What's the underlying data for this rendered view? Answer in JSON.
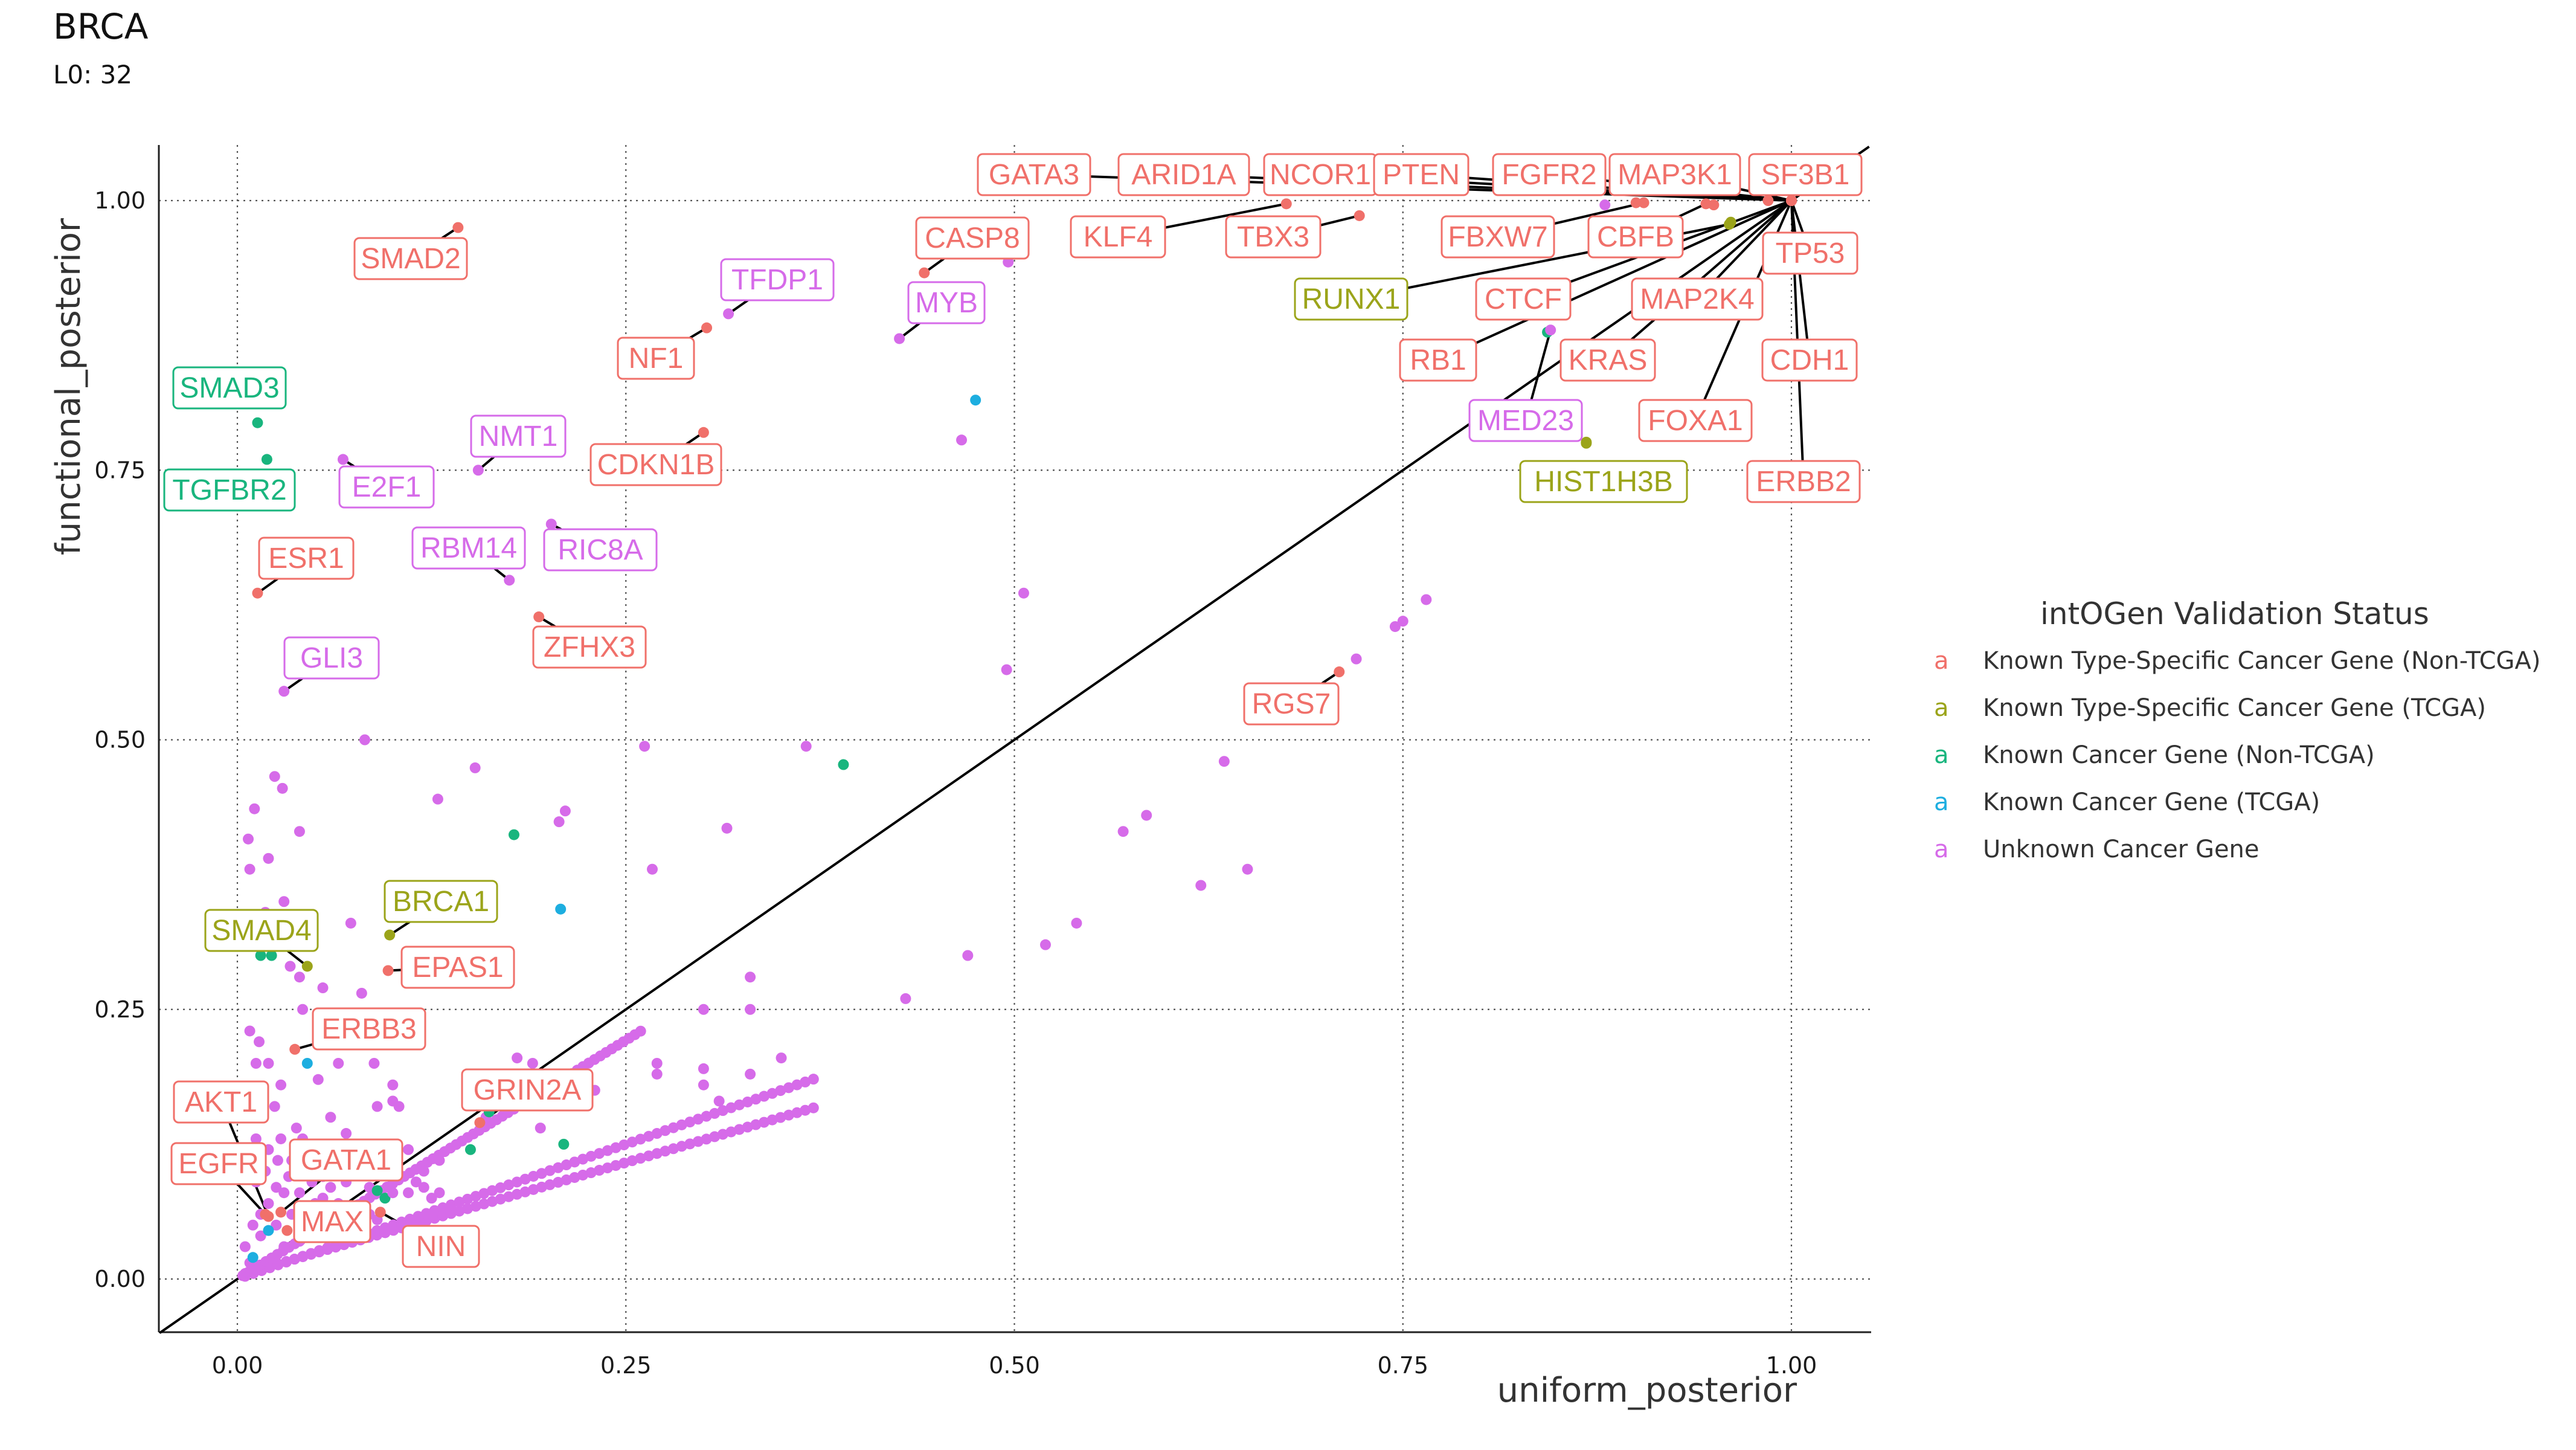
{
  "title": "BRCA",
  "subtitle": "L0: 32",
  "colors": {
    "Known Type-Specific Cancer Gene (Non-TCGA)": "#F0706A",
    "Known Type-Specific Cancer Gene (TCGA)": "#9BA41A",
    "Known Cancer Gene (Non-TCGA)": "#19B57E",
    "Known Cancer Gene (TCGA)": "#1DAEE0",
    "Unknown Cancer Gene": "#D66BE9"
  },
  "chart_data": {
    "type": "scatter",
    "xlabel": "uniform_posterior",
    "ylabel": "functional_posterior",
    "xlim": [
      -0.05,
      1.05
    ],
    "ylim": [
      -0.05,
      1.05
    ],
    "xticks": [
      "0.00",
      "0.25",
      "0.50",
      "0.75",
      "1.00"
    ],
    "yticks": [
      "0.00",
      "0.25",
      "0.50",
      "0.75",
      "1.00"
    ],
    "xtick_values": [
      0,
      0.25,
      0.5,
      0.75,
      1.0
    ],
    "ytick_values": [
      0,
      0.25,
      0.5,
      0.75,
      1.0
    ],
    "grid": "major dotted",
    "reference_line": "y = x",
    "legend": {
      "title": "intOGen Validation Status",
      "position": "right",
      "key_glyph": "a",
      "entries": [
        "Known Type-Specific Cancer Gene (Non-TCGA)",
        "Known Type-Specific Cancer Gene (TCGA)",
        "Known Cancer Gene (Non-TCGA)",
        "Known Cancer Gene (TCGA)",
        "Unknown Cancer Gene"
      ]
    },
    "labeled_points": [
      {
        "gene": "GATA3",
        "x": 1.0,
        "y": 1.0,
        "status": 0
      },
      {
        "gene": "ARID1A",
        "x": 1.0,
        "y": 1.0,
        "status": 0
      },
      {
        "gene": "NCOR1",
        "x": 1.0,
        "y": 1.0,
        "status": 0
      },
      {
        "gene": "PTEN",
        "x": 1.0,
        "y": 1.0,
        "status": 0
      },
      {
        "gene": "FGFR2",
        "x": 1.0,
        "y": 1.0,
        "status": 0
      },
      {
        "gene": "MAP3K1",
        "x": 1.0,
        "y": 1.0,
        "status": 0
      },
      {
        "gene": "SF3B1",
        "x": 1.0,
        "y": 1.0,
        "status": 0
      },
      {
        "gene": "KLF4",
        "x": 0.675,
        "y": 0.997,
        "status": 0
      },
      {
        "gene": "TBX3",
        "x": 0.722,
        "y": 0.986,
        "status": 0
      },
      {
        "gene": "FBXW7",
        "x": 0.905,
        "y": 0.998,
        "status": 0
      },
      {
        "gene": "CBFB",
        "x": 0.945,
        "y": 0.997,
        "status": 0
      },
      {
        "gene": "TP53",
        "x": 1.0,
        "y": 1.0,
        "status": 0
      },
      {
        "gene": "RUNX1",
        "x": 0.96,
        "y": 0.978,
        "status": 1
      },
      {
        "gene": "CTCF",
        "x": 1.0,
        "y": 1.0,
        "status": 0
      },
      {
        "gene": "MAP2K4",
        "x": 1.0,
        "y": 1.0,
        "status": 0
      },
      {
        "gene": "RB1",
        "x": 1.0,
        "y": 1.0,
        "status": 0
      },
      {
        "gene": "KRAS",
        "x": 1.0,
        "y": 1.0,
        "status": 0
      },
      {
        "gene": "CDH1",
        "x": 1.0,
        "y": 1.0,
        "status": 0
      },
      {
        "gene": "MED23",
        "x": 0.845,
        "y": 0.88,
        "status": 4
      },
      {
        "gene": "FOXA1",
        "x": 1.0,
        "y": 1.0,
        "status": 0
      },
      {
        "gene": "HIST1H3B",
        "x": 0.868,
        "y": 0.775,
        "status": 1
      },
      {
        "gene": "ERBB2",
        "x": 1.0,
        "y": 1.0,
        "status": 0
      },
      {
        "gene": "SMAD2",
        "x": 0.142,
        "y": 0.975,
        "status": 0
      },
      {
        "gene": "CASP8",
        "x": 0.442,
        "y": 0.933,
        "status": 0
      },
      {
        "gene": "TFDP1",
        "x": 0.316,
        "y": 0.895,
        "status": 4
      },
      {
        "gene": "MYB",
        "x": 0.426,
        "y": 0.872,
        "status": 4
      },
      {
        "gene": "NF1",
        "x": 0.302,
        "y": 0.882,
        "status": 0
      },
      {
        "gene": "SMAD3",
        "x": 0.013,
        "y": 0.794,
        "status": 2
      },
      {
        "gene": "TGFBR2",
        "x": 0.019,
        "y": 0.76,
        "status": 2
      },
      {
        "gene": "E2F1",
        "x": 0.068,
        "y": 0.76,
        "status": 4
      },
      {
        "gene": "NMT1",
        "x": 0.155,
        "y": 0.75,
        "status": 4
      },
      {
        "gene": "CDKN1B",
        "x": 0.3,
        "y": 0.785,
        "status": 0
      },
      {
        "gene": "RBM14",
        "x": 0.175,
        "y": 0.648,
        "status": 4
      },
      {
        "gene": "RIC8A",
        "x": 0.202,
        "y": 0.7,
        "status": 4
      },
      {
        "gene": "ESR1",
        "x": 0.013,
        "y": 0.636,
        "status": 0
      },
      {
        "gene": "ZFHX3",
        "x": 0.194,
        "y": 0.614,
        "status": 0
      },
      {
        "gene": "GLI3",
        "x": 0.03,
        "y": 0.545,
        "status": 4
      },
      {
        "gene": "RGS7",
        "x": 0.709,
        "y": 0.563,
        "status": 0
      },
      {
        "gene": "BRCA1",
        "x": 0.098,
        "y": 0.319,
        "status": 1
      },
      {
        "gene": "SMAD4",
        "x": 0.045,
        "y": 0.29,
        "status": 1
      },
      {
        "gene": "EPAS1",
        "x": 0.097,
        "y": 0.286,
        "status": 0
      },
      {
        "gene": "ERBB3",
        "x": 0.037,
        "y": 0.213,
        "status": 0
      },
      {
        "gene": "GRIN2A",
        "x": 0.156,
        "y": 0.145,
        "status": 0
      },
      {
        "gene": "AKT1",
        "x": 0.02,
        "y": 0.058,
        "status": 0
      },
      {
        "gene": "EGFR",
        "x": 0.018,
        "y": 0.06,
        "status": 0
      },
      {
        "gene": "GATA1",
        "x": 0.028,
        "y": 0.062,
        "status": 0
      },
      {
        "gene": "MAX",
        "x": 0.032,
        "y": 0.045,
        "status": 0
      },
      {
        "gene": "NIN",
        "x": 0.092,
        "y": 0.062,
        "status": 0
      }
    ],
    "points": [
      [
        0.985,
        1.0,
        0
      ],
      [
        0.9,
        0.998,
        0
      ],
      [
        0.95,
        0.996,
        0
      ],
      [
        0.88,
        0.996,
        4
      ],
      [
        0.961,
        0.98,
        1
      ],
      [
        0.843,
        0.878,
        2
      ],
      [
        0.868,
        0.776,
        1
      ],
      [
        0.496,
        0.943,
        4
      ],
      [
        0.475,
        0.815,
        3
      ],
      [
        0.466,
        0.778,
        4
      ],
      [
        0.506,
        0.636,
        4
      ],
      [
        0.495,
        0.565,
        4
      ],
      [
        0.39,
        0.477,
        2
      ],
      [
        0.366,
        0.494,
        4
      ],
      [
        0.262,
        0.494,
        4
      ],
      [
        0.315,
        0.418,
        4
      ],
      [
        0.211,
        0.434,
        4
      ],
      [
        0.207,
        0.424,
        4
      ],
      [
        0.178,
        0.412,
        2
      ],
      [
        0.153,
        0.474,
        4
      ],
      [
        0.129,
        0.445,
        4
      ],
      [
        0.082,
        0.5,
        4
      ],
      [
        0.267,
        0.38,
        4
      ],
      [
        0.208,
        0.343,
        3
      ],
      [
        0.073,
        0.33,
        4
      ],
      [
        0.015,
        0.3,
        2
      ],
      [
        0.022,
        0.3,
        2
      ],
      [
        0.018,
        0.34,
        4
      ],
      [
        0.03,
        0.35,
        4
      ],
      [
        0.008,
        0.38,
        4
      ],
      [
        0.02,
        0.39,
        4
      ],
      [
        0.04,
        0.415,
        4
      ],
      [
        0.007,
        0.408,
        4
      ],
      [
        0.024,
        0.466,
        4
      ],
      [
        0.029,
        0.455,
        4
      ],
      [
        0.011,
        0.436,
        4
      ],
      [
        0.034,
        0.29,
        4
      ],
      [
        0.04,
        0.28,
        4
      ],
      [
        0.055,
        0.27,
        4
      ],
      [
        0.08,
        0.265,
        4
      ],
      [
        0.042,
        0.25,
        4
      ],
      [
        0.06,
        0.23,
        4
      ],
      [
        0.008,
        0.23,
        4
      ],
      [
        0.014,
        0.22,
        4
      ],
      [
        0.02,
        0.2,
        4
      ],
      [
        0.028,
        0.18,
        4
      ],
      [
        0.045,
        0.2,
        3
      ],
      [
        0.052,
        0.185,
        4
      ],
      [
        0.065,
        0.2,
        4
      ],
      [
        0.088,
        0.2,
        4
      ],
      [
        0.1,
        0.18,
        4
      ],
      [
        0.11,
        0.22,
        4
      ],
      [
        0.012,
        0.2,
        4
      ],
      [
        0.016,
        0.17,
        4
      ],
      [
        0.024,
        0.16,
        4
      ],
      [
        0.06,
        0.15,
        4
      ],
      [
        0.07,
        0.135,
        4
      ],
      [
        0.09,
        0.16,
        4
      ],
      [
        0.1,
        0.165,
        4
      ],
      [
        0.104,
        0.16,
        4
      ],
      [
        0.11,
        0.12,
        4
      ],
      [
        0.13,
        0.11,
        4
      ],
      [
        0.15,
        0.12,
        2
      ],
      [
        0.16,
        0.15,
        4
      ],
      [
        0.162,
        0.155,
        2
      ],
      [
        0.18,
        0.205,
        4
      ],
      [
        0.19,
        0.2,
        4
      ],
      [
        0.195,
        0.14,
        4
      ],
      [
        0.21,
        0.125,
        2
      ],
      [
        0.012,
        0.13,
        4
      ],
      [
        0.02,
        0.12,
        4
      ],
      [
        0.035,
        0.11,
        4
      ],
      [
        0.045,
        0.1,
        4
      ],
      [
        0.055,
        0.095,
        4
      ],
      [
        0.07,
        0.09,
        4
      ],
      [
        0.085,
        0.085,
        4
      ],
      [
        0.09,
        0.082,
        2
      ],
      [
        0.095,
        0.075,
        2
      ],
      [
        0.1,
        0.095,
        4
      ],
      [
        0.12,
        0.1,
        4
      ],
      [
        0.23,
        0.175,
        4
      ],
      [
        0.015,
        0.06,
        4
      ],
      [
        0.025,
        0.085,
        4
      ],
      [
        0.03,
        0.08,
        4
      ],
      [
        0.005,
        0.03,
        4
      ],
      [
        0.01,
        0.05,
        4
      ],
      [
        0.02,
        0.07,
        4
      ],
      [
        0.035,
        0.06,
        4
      ],
      [
        0.05,
        0.05,
        4
      ],
      [
        0.065,
        0.07,
        4
      ],
      [
        0.075,
        0.06,
        4
      ],
      [
        0.08,
        0.07,
        4
      ],
      [
        0.012,
        0.09,
        4
      ],
      [
        0.018,
        0.1,
        4
      ],
      [
        0.026,
        0.11,
        4
      ],
      [
        0.04,
        0.08,
        4
      ],
      [
        0.055,
        0.075,
        4
      ],
      [
        0.06,
        0.065,
        4
      ],
      [
        0.065,
        0.05,
        4
      ],
      [
        0.07,
        0.045,
        4
      ],
      [
        0.04,
        0.035,
        4
      ],
      [
        0.03,
        0.03,
        4
      ],
      [
        0.025,
        0.05,
        4
      ],
      [
        0.015,
        0.04,
        4
      ],
      [
        0.008,
        0.015,
        4
      ],
      [
        0.01,
        0.02,
        3
      ],
      [
        0.02,
        0.045,
        3
      ],
      [
        0.045,
        0.045,
        3
      ],
      [
        0.05,
        0.07,
        4
      ],
      [
        0.06,
        0.085,
        4
      ],
      [
        0.085,
        0.06,
        4
      ],
      [
        0.09,
        0.055,
        4
      ],
      [
        0.1,
        0.08,
        4
      ],
      [
        0.11,
        0.08,
        4
      ],
      [
        0.115,
        0.09,
        4
      ],
      [
        0.12,
        0.085,
        4
      ],
      [
        0.125,
        0.075,
        4
      ],
      [
        0.13,
        0.08,
        4
      ],
      [
        0.028,
        0.13,
        4
      ],
      [
        0.038,
        0.14,
        4
      ],
      [
        0.05,
        0.12,
        4
      ],
      [
        0.042,
        0.13,
        4
      ],
      [
        0.033,
        0.095,
        4
      ],
      [
        0.048,
        0.09,
        4
      ],
      [
        0.31,
        0.165,
        4
      ],
      [
        0.27,
        0.19,
        4
      ],
      [
        0.27,
        0.2,
        4
      ],
      [
        0.33,
        0.25,
        4
      ],
      [
        0.3,
        0.195,
        4
      ],
      [
        0.3,
        0.25,
        4
      ],
      [
        0.33,
        0.28,
        4
      ]
    ]
  }
}
